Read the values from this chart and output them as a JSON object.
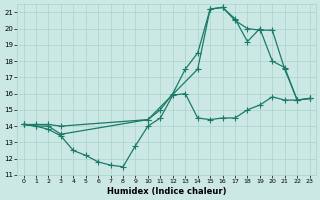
{
  "xlabel": "Humidex (Indice chaleur)",
  "xlim": [
    -0.5,
    23.5
  ],
  "ylim": [
    11,
    21.5
  ],
  "yticks": [
    11,
    12,
    13,
    14,
    15,
    16,
    17,
    18,
    19,
    20,
    21
  ],
  "xticks": [
    0,
    1,
    2,
    3,
    4,
    5,
    6,
    7,
    8,
    9,
    10,
    11,
    12,
    13,
    14,
    15,
    16,
    17,
    18,
    19,
    20,
    21,
    22,
    23
  ],
  "background_color": "#cce8e4",
  "grid_color": "#a8d4cc",
  "line_color": "#1a7a6a",
  "line1_x": [
    0,
    1,
    2,
    3,
    4,
    5,
    6,
    7,
    8,
    9,
    10,
    11,
    12,
    13,
    14,
    15,
    16,
    17,
    18,
    19,
    20,
    21,
    22,
    23
  ],
  "line1_y": [
    14.1,
    14.0,
    13.8,
    13.4,
    12.5,
    12.2,
    11.8,
    11.6,
    11.5,
    12.8,
    14.0,
    14.5,
    15.9,
    16.0,
    14.5,
    14.4,
    14.5,
    14.5,
    15.0,
    15.3,
    15.8,
    15.6,
    15.6,
    15.7
  ],
  "line2_x": [
    0,
    1,
    2,
    3,
    10,
    11,
    12,
    13,
    14,
    15,
    16,
    17,
    18,
    19,
    20,
    21,
    22,
    23
  ],
  "line2_y": [
    14.1,
    14.1,
    14.1,
    14.0,
    14.4,
    15.0,
    16.0,
    17.5,
    18.5,
    21.2,
    21.3,
    20.5,
    20.0,
    19.9,
    19.9,
    17.5,
    15.6,
    15.7
  ],
  "line3_x": [
    0,
    1,
    2,
    3,
    10,
    14,
    15,
    16,
    17,
    18,
    19,
    20,
    21,
    22,
    23
  ],
  "line3_y": [
    14.1,
    14.0,
    14.0,
    13.5,
    14.4,
    17.5,
    21.2,
    21.3,
    20.6,
    19.2,
    20.0,
    18.0,
    17.6,
    15.6,
    15.7
  ],
  "marker_size": 2.5,
  "linewidth": 0.9
}
